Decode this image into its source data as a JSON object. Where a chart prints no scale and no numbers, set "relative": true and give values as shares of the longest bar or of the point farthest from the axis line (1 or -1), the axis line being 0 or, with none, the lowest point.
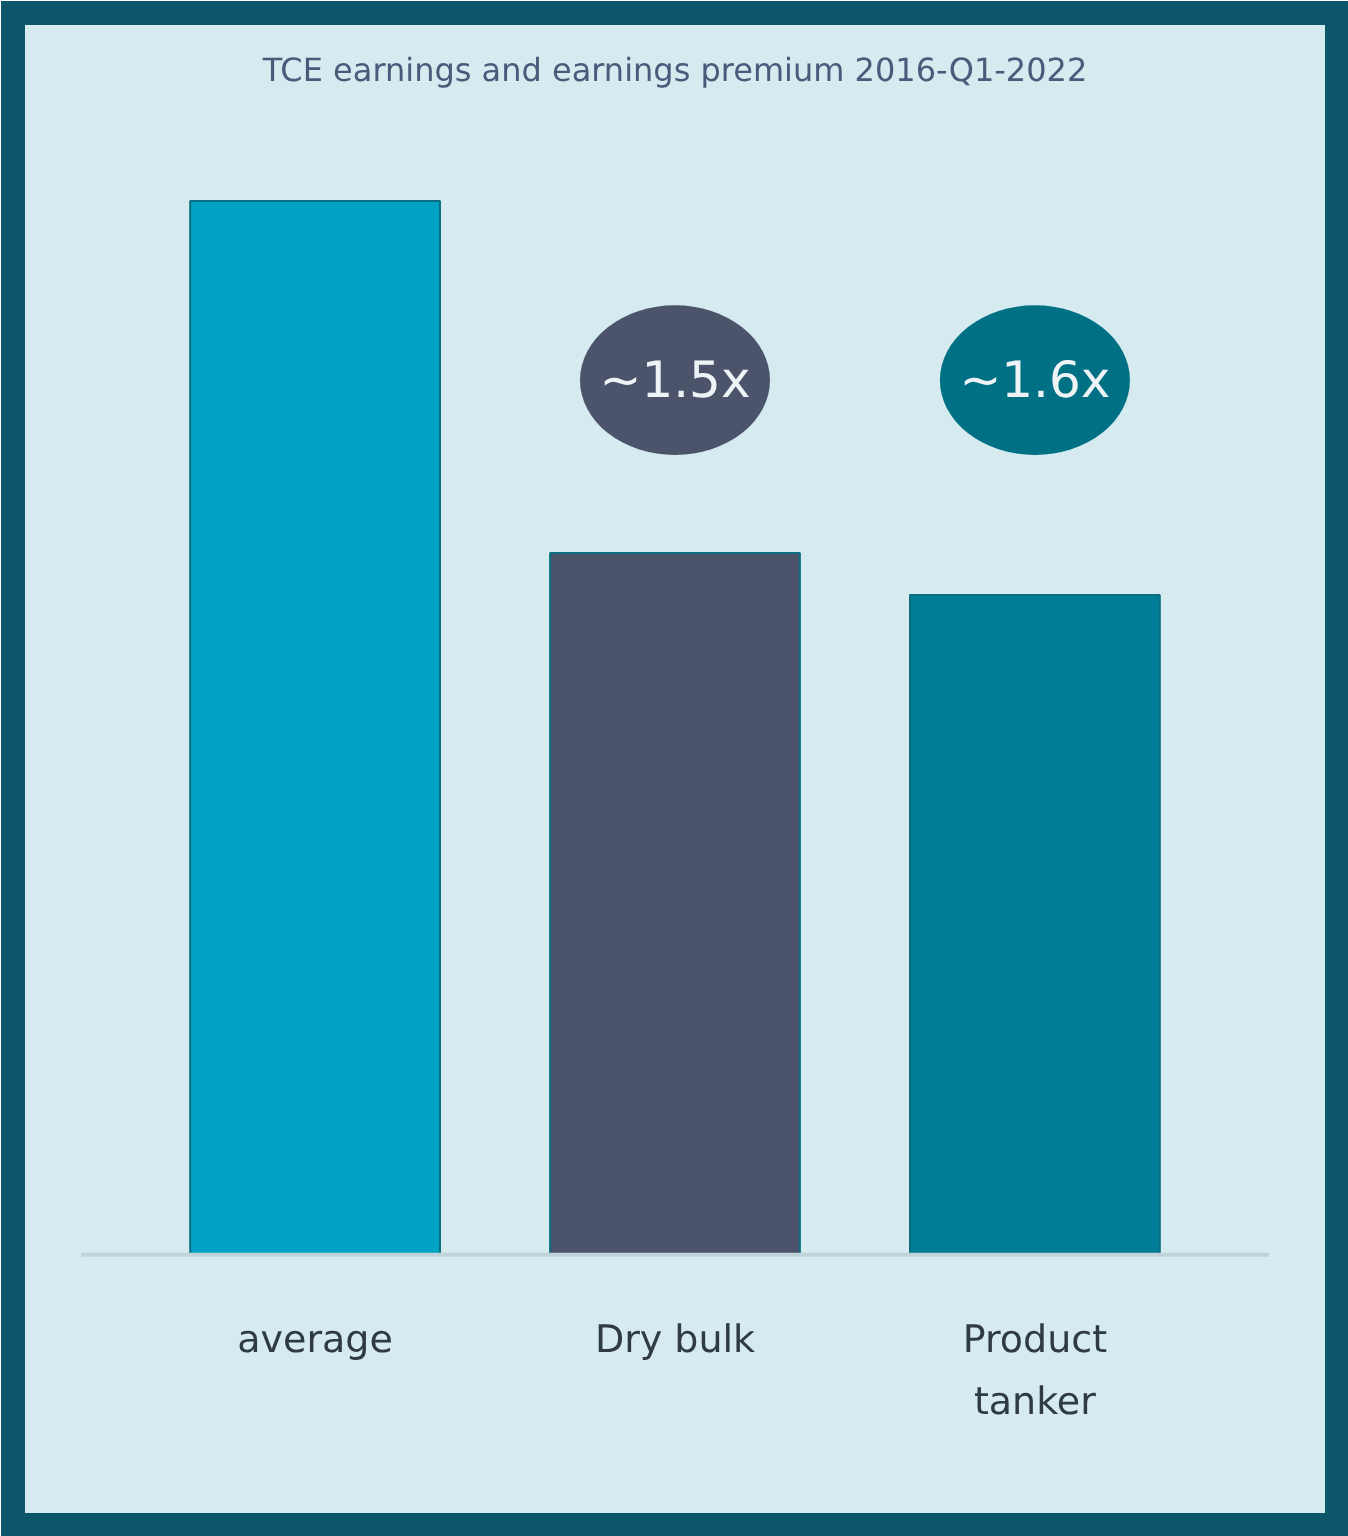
{
  "chart_data": {
    "type": "bar",
    "title": "TCE earnings and earnings premium 2016-Q1-2022",
    "relative": true,
    "categories": [
      "average",
      "Dry bulk",
      "Product tanker"
    ],
    "values": [
      1,
      0.666,
      0.626
    ],
    "colors": [
      "#00a3c4",
      "#4b546b",
      "#007d96"
    ],
    "annotations": [
      "~1.5x",
      "~1.6x"
    ]
  }
}
